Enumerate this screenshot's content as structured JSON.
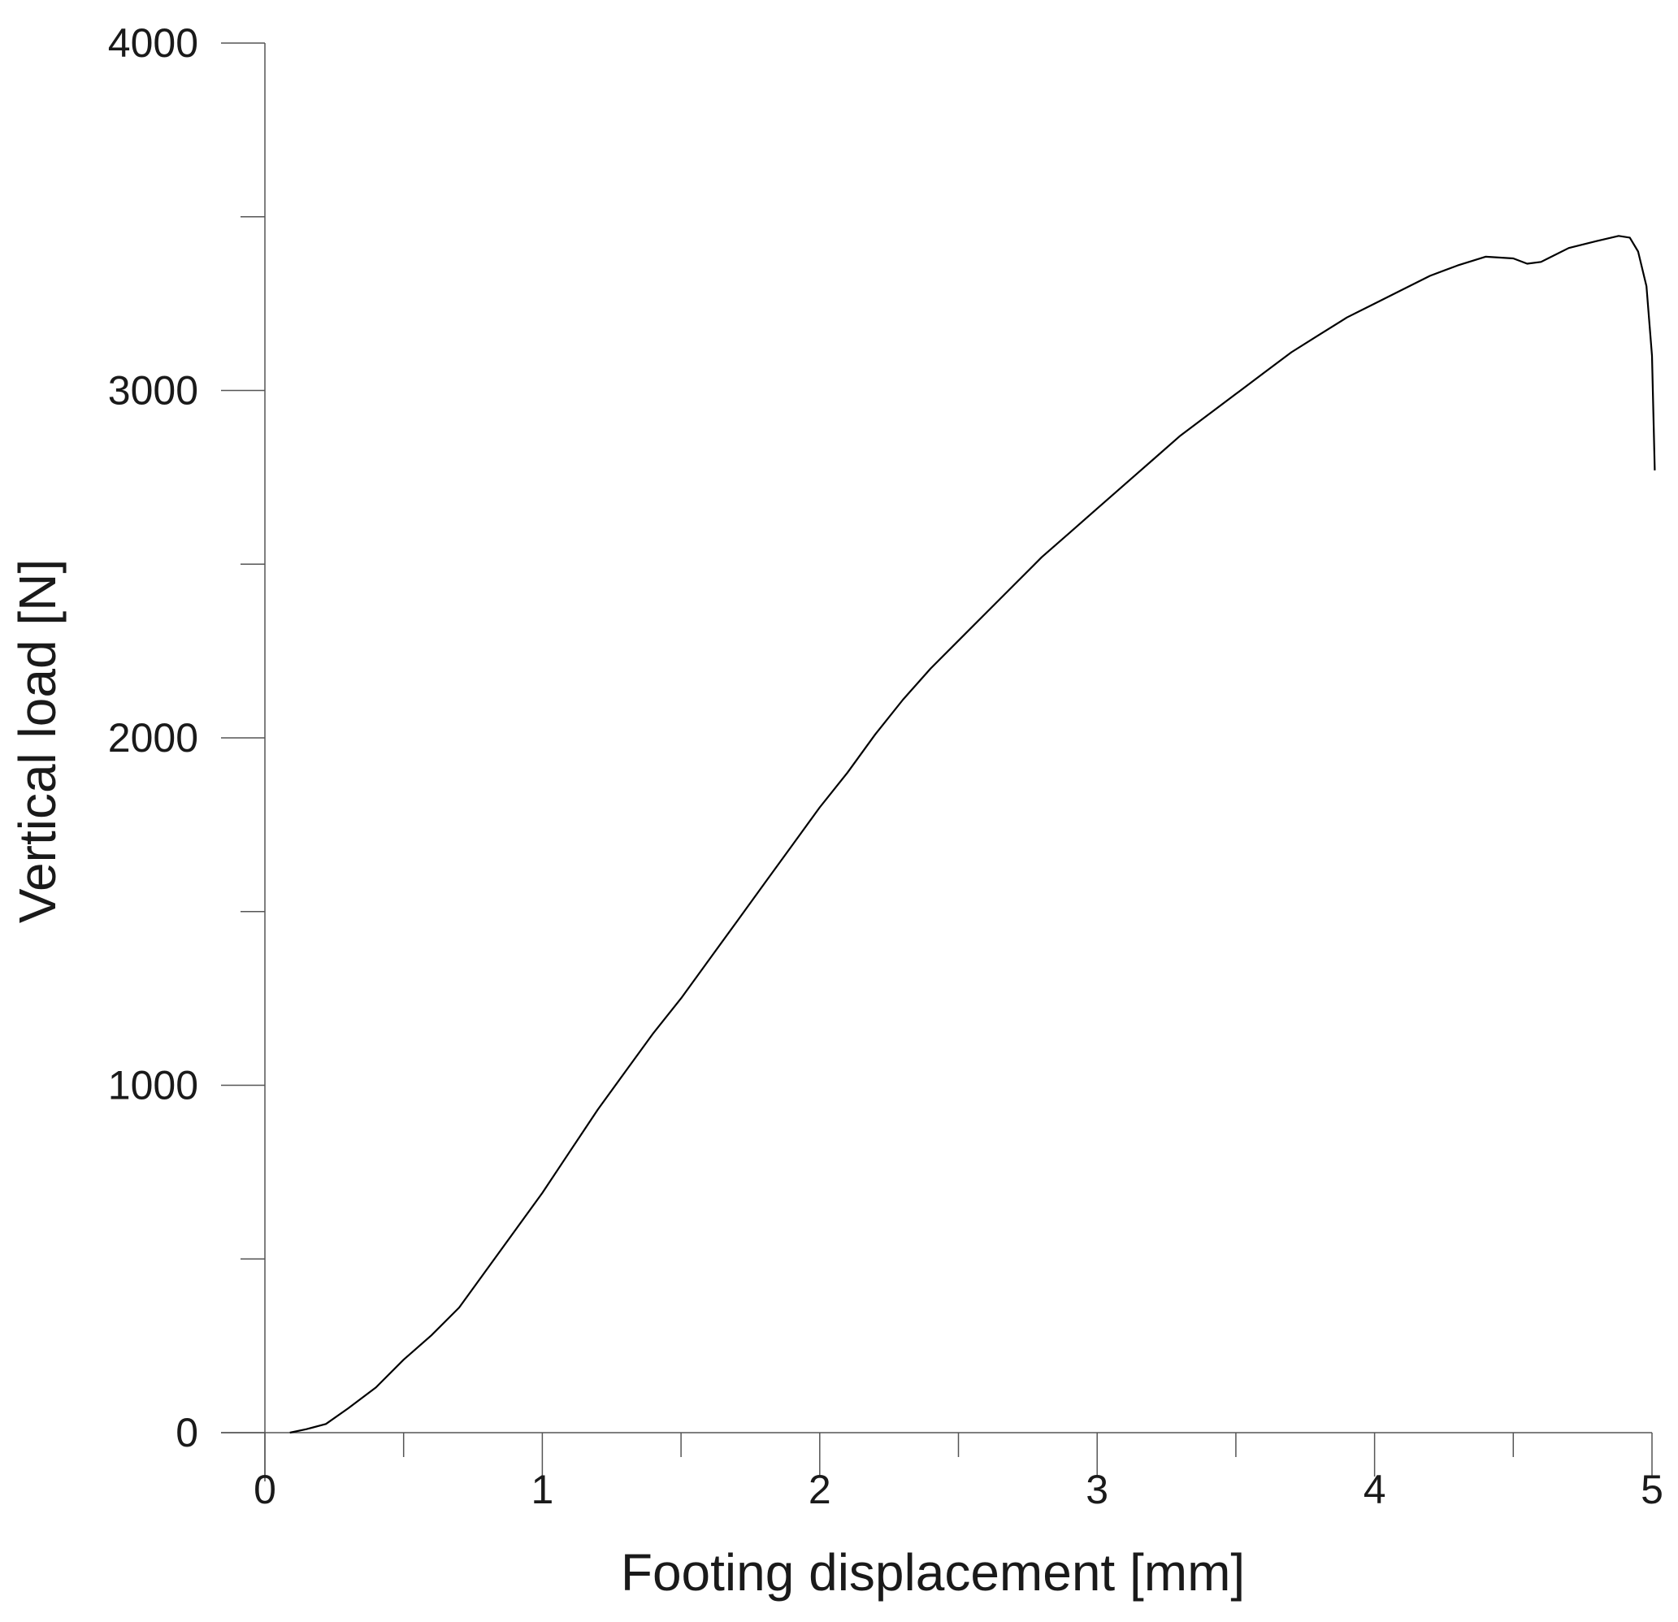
{
  "chart_data": {
    "type": "line",
    "title": "",
    "xlabel": "Footing displacement [mm]",
    "ylabel": "Vertical load [N]",
    "xlim": [
      0,
      5
    ],
    "ylim": [
      0,
      4000
    ],
    "x_tick_labels": [
      "0",
      "1",
      "2",
      "3",
      "4",
      "5"
    ],
    "x_tick_values": [
      0,
      1,
      2,
      3,
      4,
      5
    ],
    "x_minor_ticks": [
      0.5,
      1.5,
      2.5,
      3.5,
      4.5
    ],
    "y_tick_labels": [
      "0",
      "1000",
      "2000",
      "3000",
      "4000"
    ],
    "y_tick_values": [
      0,
      1000,
      2000,
      3000,
      4000
    ],
    "y_minor_ticks": [
      500,
      1500,
      2500,
      3500
    ],
    "grid": false,
    "legend": "none",
    "line_color": "#000000",
    "series": [
      {
        "x": [
          0.09,
          0.15,
          0.22,
          0.3,
          0.4,
          0.5,
          0.6,
          0.7,
          0.8,
          0.9,
          1.0,
          1.1,
          1.2,
          1.3,
          1.4,
          1.5,
          1.6,
          1.7,
          1.8,
          1.9,
          2.0,
          2.1,
          2.2,
          2.3,
          2.4,
          2.5,
          2.6,
          2.7,
          2.8,
          2.9,
          3.0,
          3.1,
          3.2,
          3.3,
          3.4,
          3.5,
          3.6,
          3.7,
          3.8,
          3.9,
          4.0,
          4.1,
          4.2,
          4.3,
          4.4,
          4.5,
          4.55,
          4.6,
          4.7,
          4.8,
          4.88,
          4.92,
          4.95,
          4.98,
          5.0,
          5.01
        ],
        "y": [
          0,
          10,
          25,
          70,
          130,
          210,
          280,
          360,
          470,
          580,
          690,
          810,
          930,
          1040,
          1150,
          1250,
          1360,
          1470,
          1580,
          1690,
          1800,
          1900,
          2010,
          2110,
          2200,
          2280,
          2360,
          2440,
          2520,
          2590,
          2660,
          2730,
          2800,
          2870,
          2930,
          2990,
          3050,
          3110,
          3160,
          3210,
          3250,
          3290,
          3330,
          3360,
          3385,
          3380,
          3365,
          3370,
          3410,
          3430,
          3445,
          3440,
          3400,
          3300,
          3100,
          2770
        ]
      }
    ]
  }
}
